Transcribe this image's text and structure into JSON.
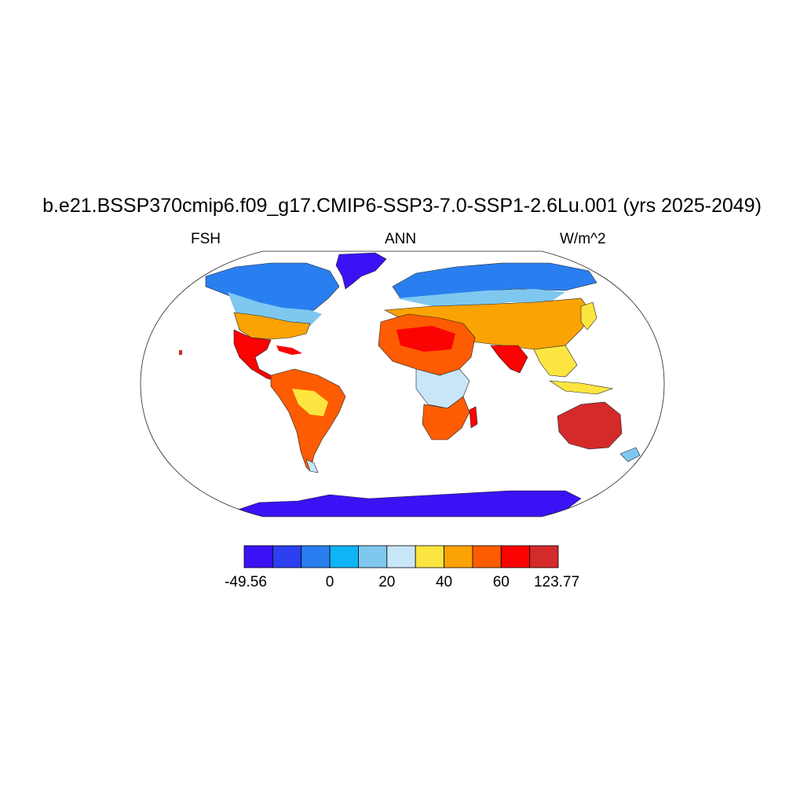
{
  "title": "b.e21.BSSP370cmip6.f09_g17.CMIP6-SSP3-7.0-SSP1-2.6Lu.001 (yrs 2025-2049)",
  "left_label": "FSH",
  "center_label": "ANN",
  "right_label": "W/m^2",
  "colorbar": {
    "colors": [
      "#3b12f5",
      "#2d3ff0",
      "#2a7ff0",
      "#0fb4f5",
      "#7ec8f0",
      "#c8e6f8",
      "#fde541",
      "#fca304",
      "#fd5c02",
      "#fb0203",
      "#d42a2a"
    ],
    "labels": [
      "-49.56",
      "0",
      "20",
      "40",
      "60",
      "123.77"
    ]
  }
}
